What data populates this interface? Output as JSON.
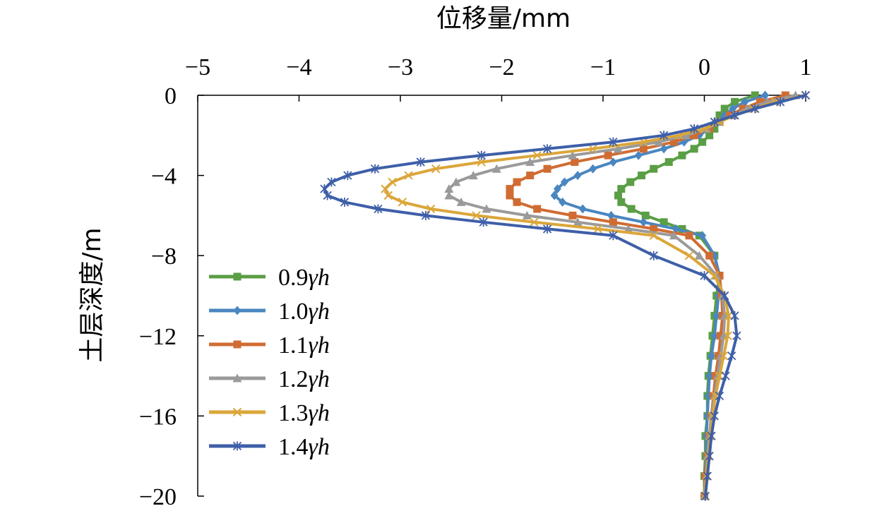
{
  "chart_data": {
    "type": "line",
    "xlabel": "位移量/mm",
    "ylabel": "土层深度/m",
    "xlim": [
      -5,
      1
    ],
    "ylim": [
      0,
      -20
    ],
    "x_axis_position": "top",
    "xticks": [
      "−5",
      "−4",
      "−3",
      "−2",
      "−1",
      "0",
      "1"
    ],
    "yticks": [
      "0",
      "−4",
      "−8",
      "−12",
      "−16",
      "−20"
    ],
    "legend_position": "bottom-left",
    "depth": [
      0,
      -0.33,
      -0.67,
      -1,
      -1.33,
      -1.67,
      -2,
      -2.33,
      -2.67,
      -3,
      -3.33,
      -3.67,
      -4,
      -4.33,
      -4.67,
      -5,
      -5.33,
      -5.67,
      -6,
      -6.33,
      -6.67,
      -7,
      -8,
      -9,
      -10,
      -11,
      -12,
      -13,
      -14,
      -15,
      -16,
      -17,
      -18,
      -19,
      -20
    ],
    "series": [
      {
        "name": "0.9γh",
        "prefix": "0.9",
        "color": "#5a9e45",
        "marker": "square",
        "values": [
          0.5,
          0.3,
          0.2,
          0.15,
          0.13,
          0.1,
          0.05,
          -0.02,
          -0.1,
          -0.22,
          -0.35,
          -0.5,
          -0.62,
          -0.73,
          -0.82,
          -0.85,
          -0.82,
          -0.72,
          -0.58,
          -0.4,
          -0.22,
          -0.05,
          0.1,
          0.15,
          0.12,
          0.1,
          0.08,
          0.06,
          0.04,
          0.03,
          0.03,
          0.01,
          0.01,
          0.0,
          0.0
        ]
      },
      {
        "name": "1.0γh",
        "prefix": "1.0",
        "color": "#4a86c0",
        "marker": "diamond",
        "values": [
          0.6,
          0.4,
          0.28,
          0.2,
          0.13,
          0.05,
          -0.05,
          -0.2,
          -0.4,
          -0.65,
          -0.9,
          -1.1,
          -1.25,
          -1.38,
          -1.45,
          -1.48,
          -1.4,
          -1.2,
          -0.92,
          -0.6,
          -0.28,
          -0.02,
          0.1,
          0.15,
          0.14,
          0.12,
          0.1,
          0.07,
          0.05,
          0.04,
          0.03,
          0.02,
          0.02,
          0.01,
          0.0
        ]
      },
      {
        "name": "1.1γh",
        "prefix": "1.1",
        "color": "#d06c33",
        "marker": "square",
        "values": [
          0.8,
          0.55,
          0.38,
          0.25,
          0.15,
          0.05,
          -0.1,
          -0.3,
          -0.6,
          -0.95,
          -1.28,
          -1.55,
          -1.72,
          -1.85,
          -1.92,
          -1.92,
          -1.85,
          -1.65,
          -1.3,
          -0.9,
          -0.5,
          -0.15,
          0.05,
          0.15,
          0.17,
          0.18,
          0.16,
          0.14,
          0.11,
          0.09,
          0.07,
          0.05,
          0.03,
          0.01,
          0.0
        ]
      },
      {
        "name": "1.2γh",
        "prefix": "1.2",
        "color": "#9a9a9a",
        "marker": "triangle",
        "values": [
          0.9,
          0.62,
          0.42,
          0.28,
          0.15,
          0.02,
          -0.18,
          -0.45,
          -0.85,
          -1.3,
          -1.72,
          -2.05,
          -2.28,
          -2.45,
          -2.52,
          -2.52,
          -2.4,
          -2.15,
          -1.75,
          -1.25,
          -0.75,
          -0.3,
          -0.05,
          0.12,
          0.18,
          0.2,
          0.19,
          0.16,
          0.13,
          0.1,
          0.07,
          0.05,
          0.03,
          0.02,
          0.0
        ]
      },
      {
        "name": "1.3γh",
        "prefix": "1.3",
        "color": "#dba63a",
        "marker": "x",
        "values": [
          1.0,
          0.7,
          0.48,
          0.3,
          0.15,
          0.0,
          -0.25,
          -0.6,
          -1.1,
          -1.65,
          -2.2,
          -2.65,
          -2.92,
          -3.08,
          -3.15,
          -3.12,
          -2.98,
          -2.7,
          -2.25,
          -1.68,
          -1.05,
          -0.5,
          -0.15,
          0.1,
          0.2,
          0.24,
          0.23,
          0.19,
          0.15,
          0.11,
          0.08,
          0.06,
          0.04,
          0.02,
          0.0
        ]
      },
      {
        "name": "1.4γh",
        "prefix": "1.4",
        "color": "#3e5fa8",
        "marker": "star",
        "values": [
          1.0,
          0.75,
          0.5,
          0.3,
          0.1,
          -0.1,
          -0.4,
          -0.9,
          -1.55,
          -2.2,
          -2.8,
          -3.25,
          -3.52,
          -3.68,
          -3.75,
          -3.72,
          -3.55,
          -3.22,
          -2.75,
          -2.18,
          -1.55,
          -0.9,
          -0.5,
          0.0,
          0.2,
          0.3,
          0.32,
          0.27,
          0.21,
          0.15,
          0.1,
          0.07,
          0.05,
          0.03,
          0.01
        ]
      }
    ]
  }
}
